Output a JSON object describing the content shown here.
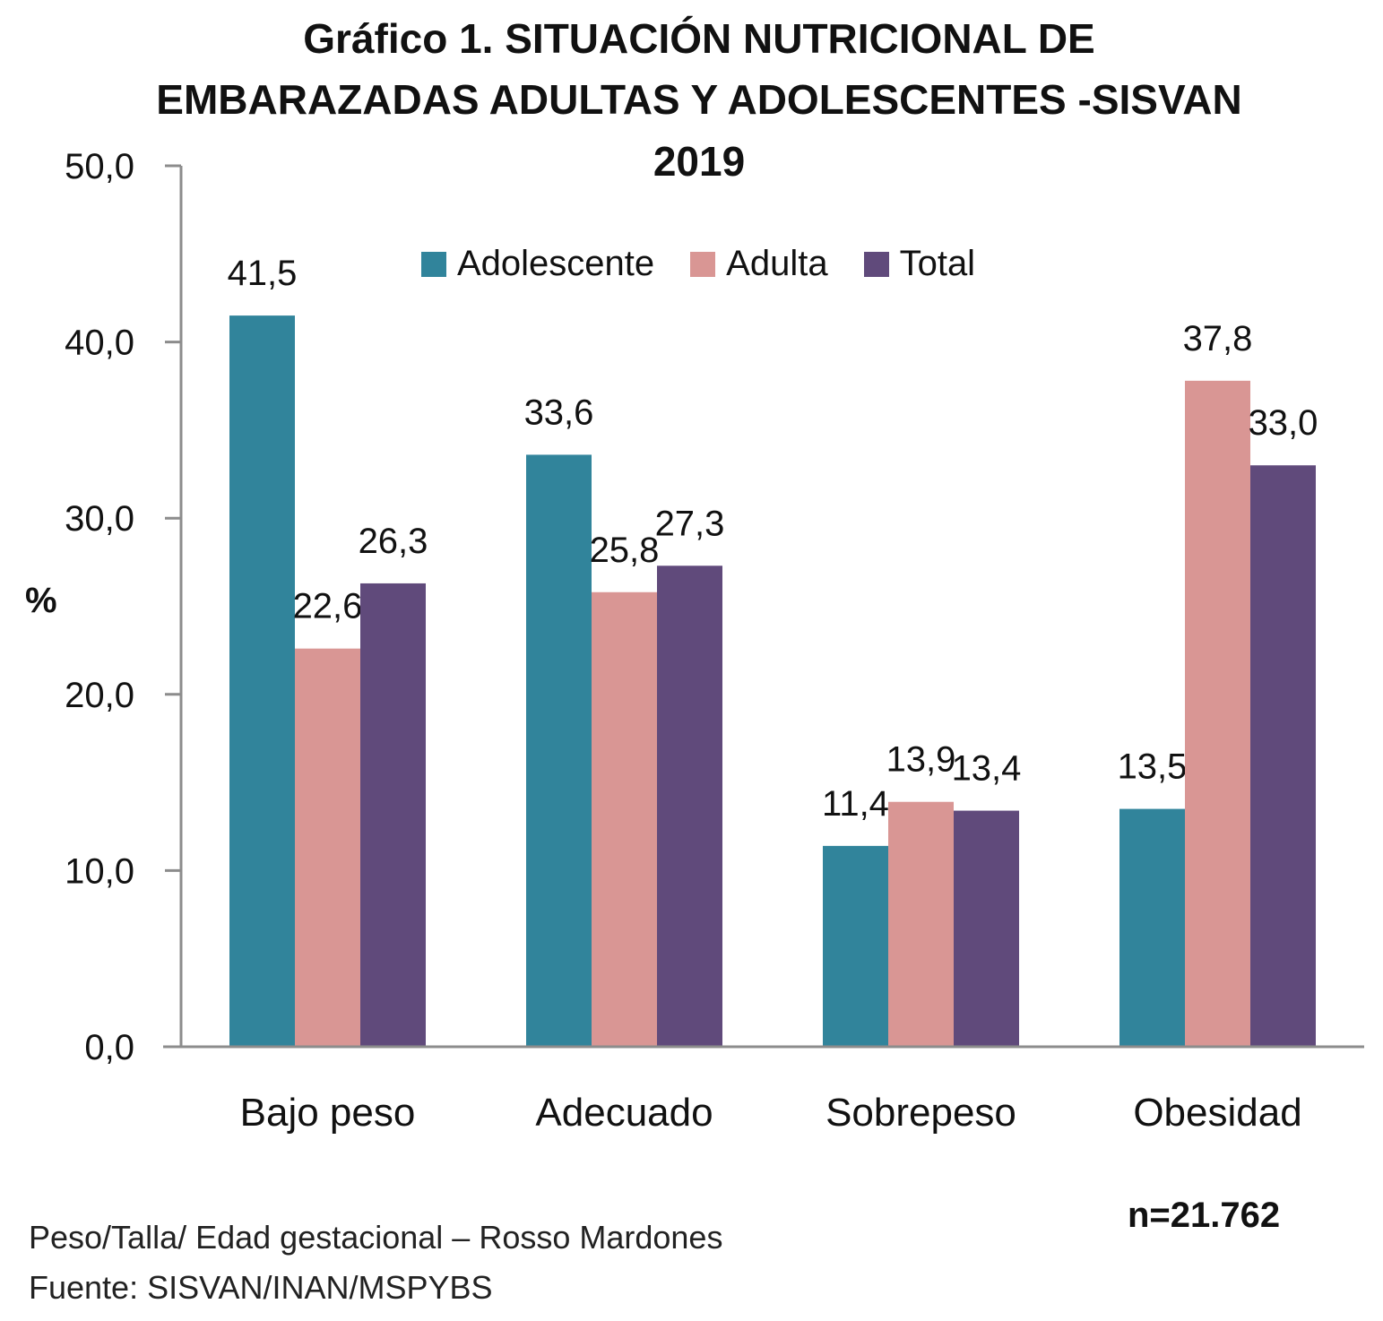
{
  "chart_data": {
    "type": "bar",
    "title_lines": [
      "Gráfico 1. SITUACIÓN NUTRICIONAL DE",
      "EMBARAZADAS ADULTAS Y ADOLESCENTES -SISVAN",
      "2019"
    ],
    "ylabel": "%",
    "ylim": [
      0,
      50
    ],
    "yticks": [
      "0,0",
      "10,0",
      "20,0",
      "30,0",
      "40,0",
      "50,0"
    ],
    "categories": [
      "Bajo peso",
      "Adecuado",
      "Sobrepeso",
      "Obesidad"
    ],
    "series": [
      {
        "name": "Adolescente",
        "color": "#31849B",
        "values": [
          41.5,
          33.6,
          11.4,
          13.5
        ],
        "labels": [
          "41,5",
          "33,6",
          "11,4",
          "13,5"
        ]
      },
      {
        "name": "Adulta",
        "color": "#D99694",
        "values": [
          22.6,
          25.8,
          13.9,
          37.8
        ],
        "labels": [
          "22,6",
          "25,8",
          "13,9",
          "37,8"
        ]
      },
      {
        "name": "Total",
        "color": "#604A7B",
        "values": [
          26.3,
          27.3,
          13.4,
          33.0
        ],
        "labels": [
          "26,3",
          "27,3",
          "13,4",
          "33,0"
        ]
      }
    ],
    "legend_position": "top",
    "grid": false,
    "note": "n=21.762",
    "footnotes": [
      "Peso/Talla/ Edad gestacional – Rosso Mardones",
      "Fuente: SISVAN/INAN/MSPYBS"
    ]
  }
}
